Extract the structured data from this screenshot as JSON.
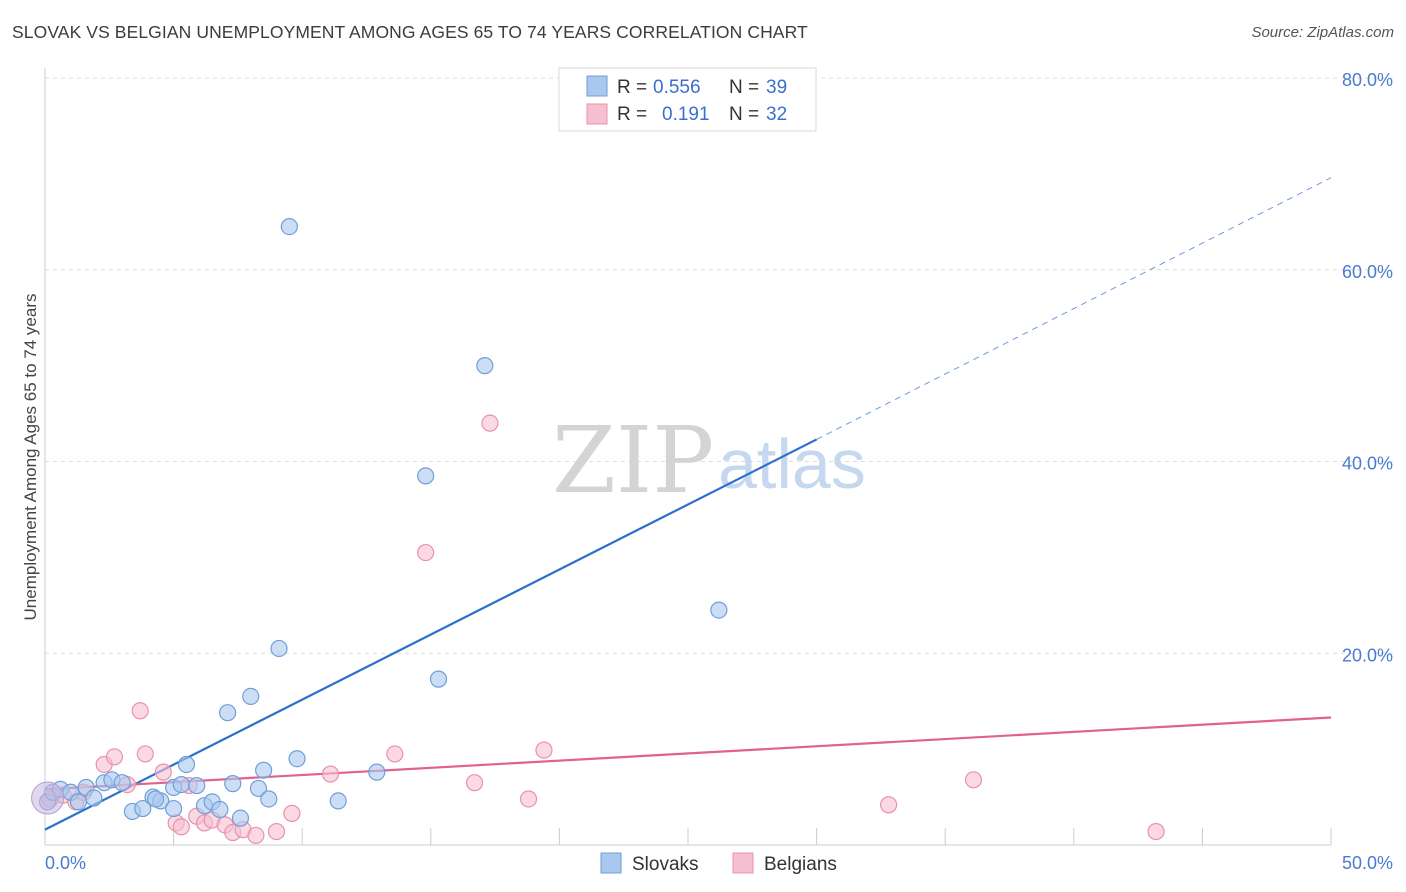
{
  "title": "SLOVAK VS BELGIAN UNEMPLOYMENT AMONG AGES 65 TO 74 YEARS CORRELATION CHART",
  "source": "Source: ZipAtlas.com",
  "watermark": {
    "zip": "ZIP",
    "atlas": "atlas"
  },
  "legend": {
    "r_label": "R =",
    "n_label": "N =",
    "slovaks": {
      "r": "0.556",
      "n": "39"
    },
    "belgians": {
      "r": "0.191",
      "n": "32"
    }
  },
  "colors": {
    "slovaks_fill": "#aac8ee",
    "slovaks_stroke": "#6f9fd8",
    "slovaks_line": "#2d6fcd",
    "belgians_fill": "#f7c0d0",
    "belgians_stroke": "#e892ad",
    "belgians_line": "#e0628e",
    "axis_text": "#4a7bd0",
    "grid": "#dcdcdc"
  },
  "chart_data": {
    "type": "scatter",
    "title": "SLOVAK VS BELGIAN UNEMPLOYMENT AMONG AGES 65 TO 74 YEARS CORRELATION CHART",
    "xlabel": "",
    "ylabel": "Unemployment Among Ages 65 to 74 years",
    "xlim": [
      0,
      50
    ],
    "ylim": [
      0,
      80
    ],
    "x_tick_labels": [
      "0.0%",
      "50.0%"
    ],
    "y_ticks": [
      20,
      40,
      60,
      80
    ],
    "y_tick_labels": [
      "20.0%",
      "40.0%",
      "60.0%",
      "80.0%"
    ],
    "grid": true,
    "legend_position": "top-center",
    "series": [
      {
        "name": "Slovaks",
        "points": [
          [
            0.1,
            4.5
          ],
          [
            0.3,
            5.5
          ],
          [
            0.6,
            5.8
          ],
          [
            1.0,
            5.5
          ],
          [
            1.3,
            4.5
          ],
          [
            1.6,
            6.0
          ],
          [
            1.9,
            4.9
          ],
          [
            2.3,
            6.5
          ],
          [
            2.6,
            6.8
          ],
          [
            3.0,
            6.5
          ],
          [
            3.4,
            3.5
          ],
          [
            3.8,
            3.8
          ],
          [
            4.2,
            5.0
          ],
          [
            4.5,
            4.6
          ],
          [
            5.0,
            6.0
          ],
          [
            5.0,
            3.8
          ],
          [
            5.3,
            6.3
          ],
          [
            5.5,
            8.4
          ],
          [
            5.9,
            6.2
          ],
          [
            6.2,
            4.1
          ],
          [
            6.5,
            4.5
          ],
          [
            6.8,
            3.7
          ],
          [
            7.1,
            13.8
          ],
          [
            7.3,
            6.4
          ],
          [
            7.6,
            2.8
          ],
          [
            8.0,
            15.5
          ],
          [
            8.3,
            5.9
          ],
          [
            8.5,
            7.8
          ],
          [
            8.7,
            4.8
          ],
          [
            9.1,
            20.5
          ],
          [
            9.5,
            64.5
          ],
          [
            9.8,
            9.0
          ],
          [
            11.4,
            4.6
          ],
          [
            12.9,
            7.6
          ],
          [
            14.8,
            38.5
          ],
          [
            15.3,
            17.3
          ],
          [
            17.1,
            50.0
          ],
          [
            26.2,
            24.5
          ],
          [
            4.3,
            4.8
          ]
        ],
        "trend": {
          "x": [
            0,
            30
          ],
          "y": [
            1.6,
            42.3
          ],
          "dashed_extension": {
            "x": [
              30,
              50
            ],
            "y": [
              42.3,
              69.6
            ]
          }
        }
      },
      {
        "name": "Belgians",
        "points": [
          [
            0.2,
            4.8
          ],
          [
            0.7,
            5.2
          ],
          [
            1.2,
            4.5
          ],
          [
            1.5,
            5.5
          ],
          [
            2.3,
            8.4
          ],
          [
            2.7,
            9.2
          ],
          [
            3.2,
            6.3
          ],
          [
            3.7,
            14.0
          ],
          [
            3.9,
            9.5
          ],
          [
            4.6,
            7.6
          ],
          [
            5.1,
            2.3
          ],
          [
            5.3,
            1.9
          ],
          [
            5.6,
            6.2
          ],
          [
            5.9,
            3.0
          ],
          [
            6.2,
            2.3
          ],
          [
            6.5,
            2.6
          ],
          [
            7.0,
            2.1
          ],
          [
            7.3,
            1.3
          ],
          [
            7.7,
            1.6
          ],
          [
            8.2,
            1.0
          ],
          [
            9.0,
            1.4
          ],
          [
            9.6,
            3.3
          ],
          [
            11.1,
            7.4
          ],
          [
            13.6,
            9.5
          ],
          [
            14.8,
            30.5
          ],
          [
            16.7,
            6.5
          ],
          [
            17.3,
            44.0
          ],
          [
            18.8,
            4.8
          ],
          [
            19.4,
            9.9
          ],
          [
            32.8,
            4.2
          ],
          [
            36.1,
            6.8
          ],
          [
            43.2,
            1.4
          ]
        ],
        "trend": {
          "x": [
            0,
            50
          ],
          "y": [
            5.8,
            13.3
          ]
        }
      }
    ]
  }
}
